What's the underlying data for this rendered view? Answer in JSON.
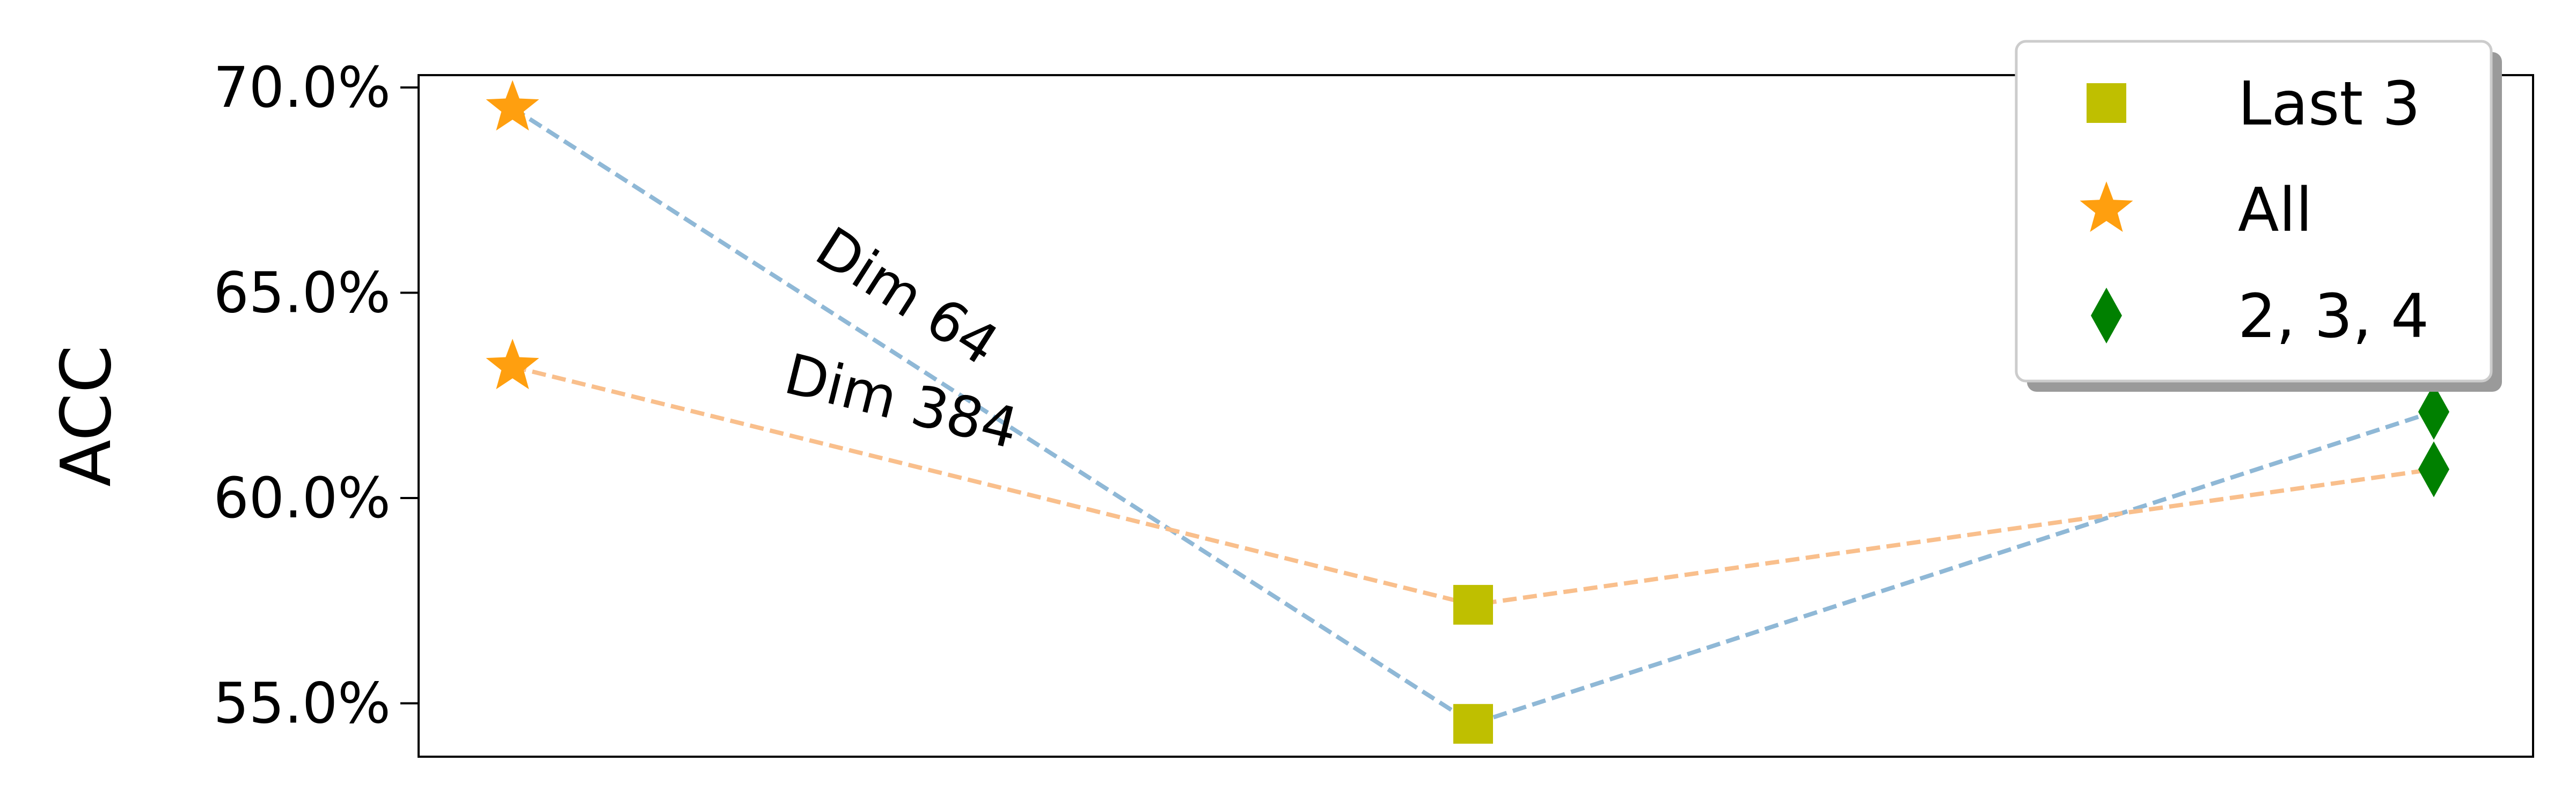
{
  "chart_data": {
    "type": "line",
    "title": "",
    "xlabel": "",
    "ylabel": "ACC",
    "categories": [
      "All",
      "Last 3",
      "2, 3, 4"
    ],
    "ylim": [
      0.537,
      0.703
    ],
    "yticks": [
      0.55,
      0.6,
      0.65,
      0.7
    ],
    "ytick_labels": [
      "55.0%",
      "60.0%",
      "65.0%",
      "70.0%"
    ],
    "grid": false,
    "legend_position": "top-right",
    "legend": [
      {
        "label": "Last 3",
        "marker": "square",
        "color": "#bfbf00"
      },
      {
        "label": "All",
        "marker": "star",
        "color": "#ff9f0f"
      },
      {
        "label": "2, 3, 4",
        "marker": "diamond",
        "color": "#008000"
      }
    ],
    "series": [
      {
        "name": "Dim 64",
        "color": "#8fb8d6",
        "values": [
          0.695,
          0.545,
          0.621
        ]
      },
      {
        "name": "Dim 384",
        "color": "#f9bf8c",
        "values": [
          0.632,
          0.574,
          0.607
        ]
      }
    ]
  }
}
